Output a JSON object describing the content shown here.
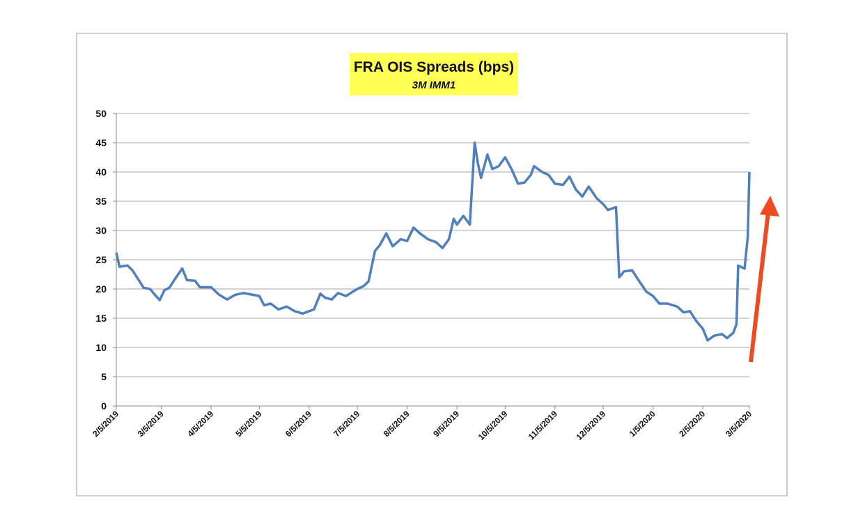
{
  "chart_data": {
    "type": "line",
    "title": "FRA OIS Spreads (bps)",
    "subtitle": "3M IMM1",
    "x": [
      "2/5/2019",
      "2/7/2019",
      "2/12/2019",
      "2/15/2019",
      "2/19/2019",
      "2/22/2019",
      "2/26/2019",
      "3/1/2019",
      "3/4/2019",
      "3/7/2019",
      "3/10/2019",
      "3/13/2019",
      "3/18/2019",
      "3/21/2019",
      "3/26/2019",
      "3/29/2019",
      "4/5/2019",
      "4/10/2019",
      "4/15/2019",
      "4/20/2019",
      "4/25/2019",
      "5/1/2019",
      "5/5/2019",
      "5/8/2019",
      "5/12/2019",
      "5/17/2019",
      "5/22/2019",
      "5/27/2019",
      "6/1/2019",
      "6/5/2019",
      "6/8/2019",
      "6/12/2019",
      "6/15/2019",
      "6/19/2019",
      "6/23/2019",
      "6/28/2019",
      "7/2/2019",
      "7/5/2019",
      "7/9/2019",
      "7/12/2019",
      "7/16/2019",
      "7/19/2019",
      "7/23/2019",
      "7/27/2019",
      "8/1/2019",
      "8/5/2019",
      "8/9/2019",
      "8/13/2019",
      "8/18/2019",
      "8/23/2019",
      "8/27/2019",
      "8/31/2019",
      "9/3/2019",
      "9/5/2019",
      "9/9/2019",
      "9/13/2019",
      "9/16/2019",
      "9/18/2019",
      "9/20/2019",
      "9/24/2019",
      "9/27/2019",
      "10/1/2019",
      "10/5/2019",
      "10/9/2019",
      "10/13/2019",
      "10/17/2019",
      "10/21/2019",
      "10/23/2019",
      "10/28/2019",
      "11/1/2019",
      "11/5/2019",
      "11/10/2019",
      "11/14/2019",
      "11/18/2019",
      "11/22/2019",
      "11/26/2019",
      "12/1/2019",
      "12/5/2019",
      "12/8/2019",
      "12/13/2019",
      "12/15/2019",
      "12/18/2019",
      "12/23/2019",
      "12/27/2019",
      "1/1/2020",
      "1/5/2020",
      "1/9/2020",
      "1/14/2020",
      "1/20/2020",
      "1/24/2020",
      "1/28/2020",
      "2/1/2020",
      "2/5/2020",
      "2/8/2020",
      "2/12/2020",
      "2/17/2020",
      "2/20/2020",
      "2/24/2020",
      "2/26/2020",
      "2/27/2020",
      "3/2/2020",
      "3/4/2020",
      "3/5/2020"
    ],
    "values": [
      26.2,
      23.8,
      24,
      23.2,
      21.5,
      20.2,
      20,
      19,
      18.1,
      19.8,
      20.2,
      21.5,
      23.5,
      21.5,
      21.4,
      20.3,
      20.3,
      19,
      18.2,
      19,
      19.3,
      19,
      18.8,
      17.2,
      17.5,
      16.5,
      17,
      16.2,
      15.8,
      16.2,
      16.5,
      19.2,
      18.5,
      18.2,
      19.3,
      18.8,
      19.5,
      20,
      20.5,
      21.3,
      26.5,
      27.5,
      29.5,
      27.3,
      28.5,
      28.2,
      30.5,
      29.5,
      28.5,
      28,
      27,
      28.5,
      32,
      31,
      32.5,
      31,
      45,
      41.5,
      39,
      43,
      40.5,
      41,
      42.5,
      40.5,
      38,
      38.2,
      39.5,
      41,
      40,
      39.5,
      38,
      37.8,
      39.2,
      37,
      35.8,
      37.5,
      35.5,
      34.5,
      33.5,
      34,
      22,
      23,
      23.2,
      21.5,
      19.5,
      18.8,
      17.5,
      17.5,
      17,
      16,
      16.2,
      14.5,
      13.2,
      11.2,
      12,
      12.3,
      11.6,
      12.5,
      14,
      24,
      23.5,
      29,
      40
    ],
    "color": "#4f7fbf",
    "xlim": [
      "2/5/2019",
      "3/5/2020"
    ],
    "xticks": [
      "2/5/2019",
      "3/5/2019",
      "4/5/2019",
      "5/5/2019",
      "6/5/2019",
      "7/5/2019",
      "8/5/2019",
      "9/5/2019",
      "10/5/2019",
      "11/5/2019",
      "12/5/2019",
      "1/5/2020",
      "2/5/2020",
      "3/5/2020"
    ],
    "ylim": [
      0,
      50
    ],
    "yticks": [
      0,
      5,
      10,
      15,
      20,
      25,
      30,
      35,
      40,
      45,
      50
    ],
    "grid": true
  }
}
